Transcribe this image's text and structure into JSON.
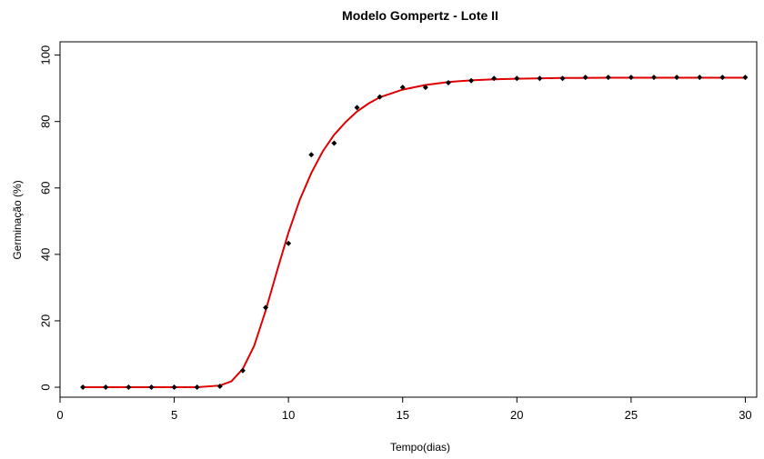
{
  "chart_data": {
    "type": "scatter",
    "title": "Modelo Gompertz - Lote II",
    "xlabel": "Tempo(dias)",
    "ylabel": "Germinação (%)",
    "xlim": [
      0,
      30.5
    ],
    "ylim": [
      -3,
      104
    ],
    "xticks": [
      0,
      5,
      10,
      15,
      20,
      25,
      30
    ],
    "yticks": [
      0,
      20,
      40,
      60,
      80,
      100
    ],
    "grid": false,
    "legend": "none",
    "series": [
      {
        "kind": "points",
        "color": "#000000",
        "x": [
          1,
          2,
          3,
          4,
          5,
          6,
          7,
          8,
          9,
          10,
          11,
          12,
          13,
          14,
          15,
          16,
          17,
          18,
          19,
          20,
          21,
          22,
          23,
          24,
          25,
          26,
          27,
          28,
          29,
          30
        ],
        "y": [
          0,
          0,
          0,
          0,
          0,
          0,
          0.3,
          5,
          24,
          43.3,
          70,
          73.5,
          84.2,
          87.4,
          90.3,
          90.3,
          91.7,
          92.3,
          93,
          93,
          93,
          93,
          93.3,
          93.3,
          93.3,
          93.3,
          93.3,
          93.3,
          93.3,
          93.3
        ]
      },
      {
        "kind": "fitted-curve",
        "color": "#e00000",
        "x": [
          1,
          2,
          3,
          4,
          5,
          6,
          7,
          7.5,
          8,
          8.5,
          9,
          9.5,
          10,
          10.5,
          11,
          11.5,
          12,
          12.5,
          13,
          13.5,
          14,
          15,
          16,
          17,
          18,
          19,
          20,
          22,
          24,
          26,
          28,
          30
        ],
        "y": [
          0,
          0,
          0,
          0,
          0,
          0,
          0.5,
          1.8,
          5.5,
          12.5,
          23,
          35,
          46.5,
          56.5,
          64.5,
          71,
          76,
          79.8,
          83,
          85.4,
          87.3,
          89.6,
          91,
          91.9,
          92.4,
          92.7,
          92.9,
          93.1,
          93.2,
          93.2,
          93.2,
          93.2
        ]
      }
    ]
  }
}
